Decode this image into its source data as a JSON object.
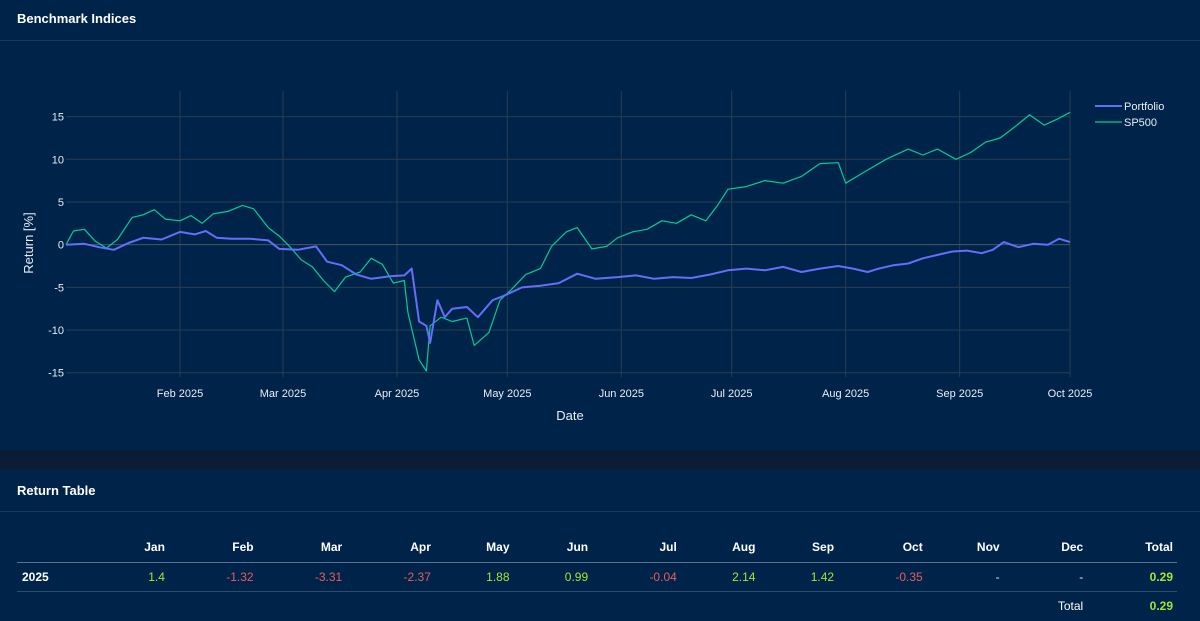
{
  "benchmark_panel": {
    "title": "Benchmark Indices"
  },
  "return_panel": {
    "title": "Return Table"
  },
  "chart_data": {
    "type": "line",
    "xlabel": "Date",
    "ylabel": "Return [%]",
    "xlim": [
      "2025-01-01",
      "2025-10-01"
    ],
    "ylim": [
      -15.5,
      18
    ],
    "x_ticks": [
      "Feb 2025",
      "Mar 2025",
      "Apr 2025",
      "May 2025",
      "Jun 2025",
      "Jul 2025",
      "Aug 2025",
      "Sep 2025",
      "Oct 2025"
    ],
    "y_ticks": [
      15,
      10,
      5,
      0,
      -5,
      -10,
      -15
    ],
    "grid": true,
    "legend_position": "top-right",
    "series": [
      {
        "name": "Portfolio",
        "color": "#636efa",
        "points": [
          [
            "2025-01-01",
            0
          ],
          [
            "2025-01-06",
            0.1
          ],
          [
            "2025-01-10",
            -0.3
          ],
          [
            "2025-01-14",
            -0.6
          ],
          [
            "2025-01-18",
            0.2
          ],
          [
            "2025-01-22",
            0.8
          ],
          [
            "2025-01-27",
            0.6
          ],
          [
            "2025-02-01",
            1.5
          ],
          [
            "2025-02-05",
            1.2
          ],
          [
            "2025-02-08",
            1.6
          ],
          [
            "2025-02-11",
            0.8
          ],
          [
            "2025-02-15",
            0.7
          ],
          [
            "2025-02-20",
            0.7
          ],
          [
            "2025-02-25",
            0.5
          ],
          [
            "2025-02-28",
            -0.5
          ],
          [
            "2025-03-05",
            -0.6
          ],
          [
            "2025-03-10",
            -0.2
          ],
          [
            "2025-03-13",
            -2
          ],
          [
            "2025-03-17",
            -2.4
          ],
          [
            "2025-03-21",
            -3.5
          ],
          [
            "2025-03-25",
            -4
          ],
          [
            "2025-03-30",
            -3.7
          ],
          [
            "2025-04-03",
            -3.6
          ],
          [
            "2025-04-05",
            -2.8
          ],
          [
            "2025-04-07",
            -9
          ],
          [
            "2025-04-09",
            -9.5
          ],
          [
            "2025-04-10",
            -11.5
          ],
          [
            "2025-04-12",
            -6.5
          ],
          [
            "2025-04-14",
            -8.5
          ],
          [
            "2025-04-16",
            -7.5
          ],
          [
            "2025-04-20",
            -7.3
          ],
          [
            "2025-04-23",
            -8.5
          ],
          [
            "2025-04-27",
            -6.5
          ],
          [
            "2025-04-30",
            -6
          ],
          [
            "2025-05-05",
            -5
          ],
          [
            "2025-05-10",
            -4.8
          ],
          [
            "2025-05-15",
            -4.5
          ],
          [
            "2025-05-20",
            -3.4
          ],
          [
            "2025-05-25",
            -4
          ],
          [
            "2025-05-31",
            -3.8
          ],
          [
            "2025-06-05",
            -3.6
          ],
          [
            "2025-06-10",
            -4
          ],
          [
            "2025-06-15",
            -3.8
          ],
          [
            "2025-06-20",
            -3.9
          ],
          [
            "2025-06-25",
            -3.5
          ],
          [
            "2025-06-30",
            -3
          ],
          [
            "2025-07-05",
            -2.8
          ],
          [
            "2025-07-10",
            -3
          ],
          [
            "2025-07-15",
            -2.6
          ],
          [
            "2025-07-20",
            -3.2
          ],
          [
            "2025-07-25",
            -2.8
          ],
          [
            "2025-07-30",
            -2.5
          ],
          [
            "2025-08-03",
            -2.8
          ],
          [
            "2025-08-07",
            -3.2
          ],
          [
            "2025-08-10",
            -2.8
          ],
          [
            "2025-08-14",
            -2.4
          ],
          [
            "2025-08-18",
            -2.2
          ],
          [
            "2025-08-22",
            -1.6
          ],
          [
            "2025-08-26",
            -1.2
          ],
          [
            "2025-08-30",
            -0.8
          ],
          [
            "2025-09-03",
            -0.7
          ],
          [
            "2025-09-07",
            -1
          ],
          [
            "2025-09-10",
            -0.6
          ],
          [
            "2025-09-13",
            0.3
          ],
          [
            "2025-09-17",
            -0.3
          ],
          [
            "2025-09-21",
            0.1
          ],
          [
            "2025-09-25",
            0
          ],
          [
            "2025-09-28",
            0.7
          ],
          [
            "2025-10-01",
            0.3
          ]
        ]
      },
      {
        "name": "SP500",
        "color": "#00cc96",
        "points": [
          [
            "2025-01-01",
            0
          ],
          [
            "2025-01-03",
            1.6
          ],
          [
            "2025-01-06",
            1.8
          ],
          [
            "2025-01-09",
            0.4
          ],
          [
            "2025-01-12",
            -0.4
          ],
          [
            "2025-01-15",
            0.6
          ],
          [
            "2025-01-19",
            3.2
          ],
          [
            "2025-01-22",
            3.5
          ],
          [
            "2025-01-25",
            4.1
          ],
          [
            "2025-01-28",
            3
          ],
          [
            "2025-02-01",
            2.8
          ],
          [
            "2025-02-04",
            3.4
          ],
          [
            "2025-02-07",
            2.5
          ],
          [
            "2025-02-10",
            3.6
          ],
          [
            "2025-02-14",
            3.9
          ],
          [
            "2025-02-18",
            4.6
          ],
          [
            "2025-02-21",
            4.2
          ],
          [
            "2025-02-25",
            2
          ],
          [
            "2025-02-28",
            1
          ],
          [
            "2025-03-03",
            -0.3
          ],
          [
            "2025-03-06",
            -1.8
          ],
          [
            "2025-03-09",
            -2.6
          ],
          [
            "2025-03-12",
            -4.2
          ],
          [
            "2025-03-15",
            -5.5
          ],
          [
            "2025-03-18",
            -3.8
          ],
          [
            "2025-03-22",
            -3.2
          ],
          [
            "2025-03-25",
            -1.6
          ],
          [
            "2025-03-28",
            -2.3
          ],
          [
            "2025-03-31",
            -4.5
          ],
          [
            "2025-04-03",
            -4.2
          ],
          [
            "2025-04-04",
            -8
          ],
          [
            "2025-04-07",
            -13.5
          ],
          [
            "2025-04-09",
            -14.8
          ],
          [
            "2025-04-10",
            -9.5
          ],
          [
            "2025-04-13",
            -8.5
          ],
          [
            "2025-04-16",
            -9
          ],
          [
            "2025-04-20",
            -8.6
          ],
          [
            "2025-04-22",
            -11.8
          ],
          [
            "2025-04-26",
            -10.3
          ],
          [
            "2025-04-29",
            -6.5
          ],
          [
            "2025-05-02",
            -5.3
          ],
          [
            "2025-05-06",
            -3.5
          ],
          [
            "2025-05-10",
            -2.8
          ],
          [
            "2025-05-13",
            -0.2
          ],
          [
            "2025-05-17",
            1.5
          ],
          [
            "2025-05-20",
            2
          ],
          [
            "2025-05-24",
            -0.5
          ],
          [
            "2025-05-28",
            -0.2
          ],
          [
            "2025-05-31",
            0.8
          ],
          [
            "2025-06-04",
            1.5
          ],
          [
            "2025-06-08",
            1.8
          ],
          [
            "2025-06-12",
            2.8
          ],
          [
            "2025-06-16",
            2.5
          ],
          [
            "2025-06-20",
            3.5
          ],
          [
            "2025-06-24",
            2.8
          ],
          [
            "2025-06-27",
            4.5
          ],
          [
            "2025-06-30",
            6.5
          ],
          [
            "2025-07-05",
            6.8
          ],
          [
            "2025-07-10",
            7.5
          ],
          [
            "2025-07-15",
            7.2
          ],
          [
            "2025-07-20",
            8
          ],
          [
            "2025-07-25",
            9.5
          ],
          [
            "2025-07-30",
            9.6
          ],
          [
            "2025-08-01",
            7.2
          ],
          [
            "2025-08-06",
            8.5
          ],
          [
            "2025-08-12",
            10
          ],
          [
            "2025-08-18",
            11.2
          ],
          [
            "2025-08-22",
            10.5
          ],
          [
            "2025-08-26",
            11.2
          ],
          [
            "2025-08-31",
            10
          ],
          [
            "2025-09-04",
            10.8
          ],
          [
            "2025-09-08",
            12
          ],
          [
            "2025-09-12",
            12.5
          ],
          [
            "2025-09-16",
            13.8
          ],
          [
            "2025-09-20",
            15.2
          ],
          [
            "2025-09-24",
            14
          ],
          [
            "2025-09-28",
            14.8
          ],
          [
            "2025-10-01",
            15.5
          ]
        ]
      }
    ]
  },
  "return_table": {
    "columns": [
      "",
      "Jan",
      "Feb",
      "Mar",
      "Apr",
      "May",
      "Jun",
      "Jul",
      "Aug",
      "Sep",
      "Oct",
      "Nov",
      "Dec",
      "Total"
    ],
    "rows": [
      {
        "year": "2025",
        "values": [
          "1.4",
          "-1.32",
          "-3.31",
          "-2.37",
          "1.88",
          "0.99",
          "-0.04",
          "2.14",
          "1.42",
          "-0.35",
          "-",
          "-"
        ],
        "total": "0.29"
      }
    ],
    "summary": {
      "label": "Total",
      "value": "0.29"
    },
    "colors": {
      "positive": "#a3e635",
      "negative": "#e35d5d"
    }
  }
}
